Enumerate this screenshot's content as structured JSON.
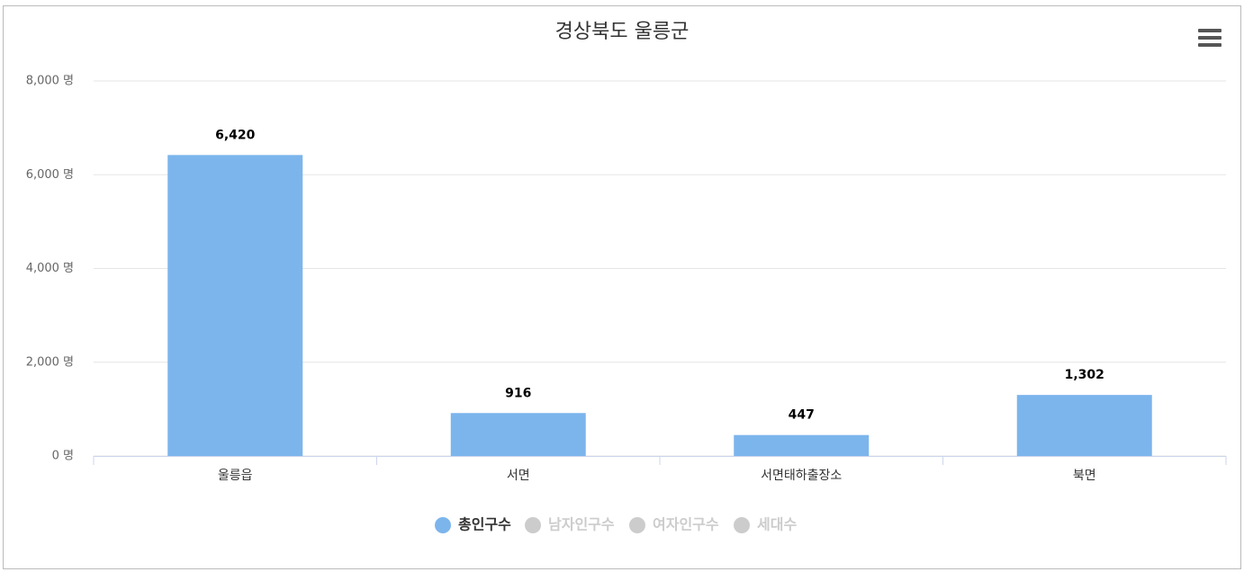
{
  "chart_data": {
    "type": "bar",
    "title": "경상북도 울릉군",
    "categories": [
      "울릉읍",
      "서면",
      "서면태하출장소",
      "북면"
    ],
    "series": [
      {
        "name": "총인구수",
        "color": "#7cb5ec",
        "values": [
          6420,
          916,
          447,
          1302
        ],
        "value_labels": [
          "6,420",
          "916",
          "447",
          "1,302"
        ]
      }
    ],
    "legend_inactive": [
      "남자인구수",
      "여자인구수",
      "세대수"
    ],
    "inactive_color": "#cccccc",
    "ylim": [
      0,
      8000
    ],
    "yticks": [
      {
        "value": 0,
        "label": "0 명"
      },
      {
        "value": 2000,
        "label": "2,000 명"
      },
      {
        "value": 4000,
        "label": "4,000 명"
      },
      {
        "value": 6000,
        "label": "6,000 명"
      },
      {
        "value": 8000,
        "label": "8,000 명"
      }
    ],
    "grid": true
  }
}
